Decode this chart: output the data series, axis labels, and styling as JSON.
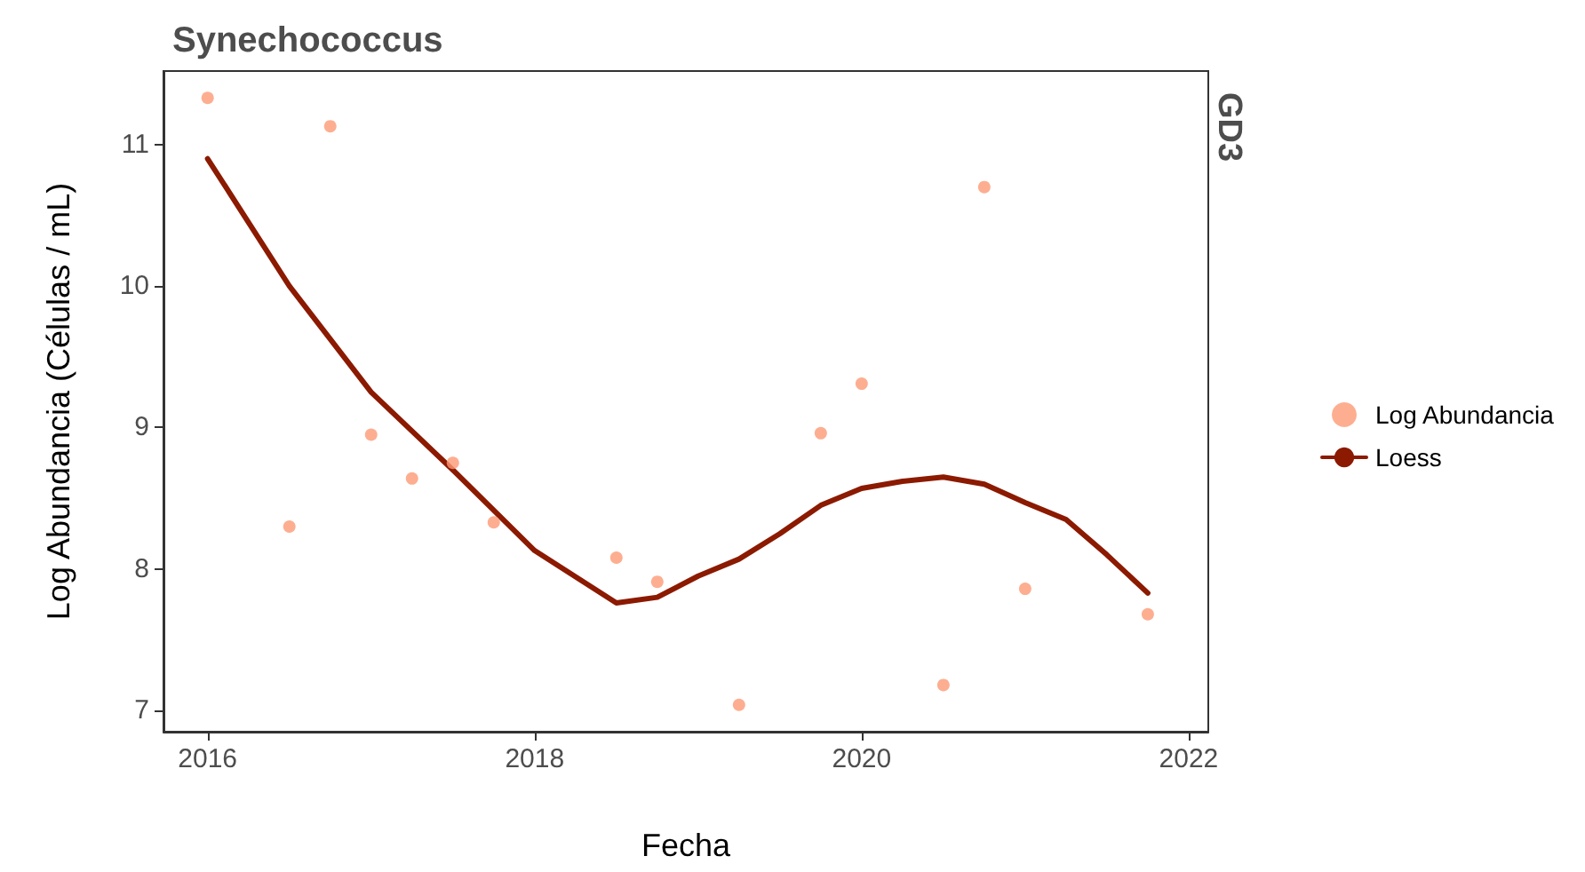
{
  "chart_data": {
    "type": "scatter",
    "title": "Synechococcus",
    "xlabel": "Fecha",
    "ylabel": "Log Abundancia (Células / mL)",
    "annotations": [
      "GD3"
    ],
    "xlim": [
      2015.73,
      2022.12
    ],
    "xticks": [
      2016,
      2018,
      2020,
      2022
    ],
    "ylim": [
      6.85,
      11.52
    ],
    "yticks": [
      7,
      8,
      9,
      10,
      11
    ],
    "grid": false,
    "legend": "right",
    "series": [
      {
        "name": "Log Abundancia",
        "marker": "circle",
        "color": "#fc9a76",
        "x": [
          2016,
          2016.5,
          2016.75,
          2017,
          2017.25,
          2017.5,
          2017.75,
          2018.5,
          2018.75,
          2019.25,
          2019.75,
          2020,
          2020.5,
          2020.75,
          2021,
          2021.75
        ],
        "values": [
          11.33,
          8.3,
          11.13,
          8.95,
          8.64,
          8.75,
          8.33,
          8.08,
          7.91,
          7.04,
          8.96,
          9.31,
          7.18,
          10.7,
          7.86,
          7.68
        ]
      },
      {
        "name": "Loess",
        "type": "line",
        "marker": "none",
        "line_style": "solid",
        "color": "#8b1a00",
        "x": [
          2016,
          2016.5,
          2017,
          2017.5,
          2018,
          2018.5,
          2018.75,
          2019,
          2019.25,
          2019.5,
          2019.75,
          2020,
          2020.25,
          2020.5,
          2020.75,
          2021,
          2021.25,
          2021.5,
          2021.75
        ],
        "values": [
          10.9,
          10.0,
          9.25,
          8.7,
          8.13,
          7.76,
          7.8,
          7.95,
          8.07,
          8.25,
          8.45,
          8.57,
          8.62,
          8.65,
          8.6,
          8.47,
          8.35,
          8.1,
          7.83
        ]
      }
    ]
  }
}
